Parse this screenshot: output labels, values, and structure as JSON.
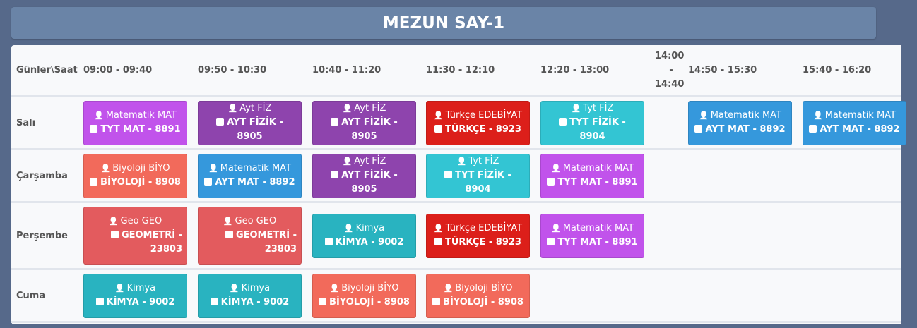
{
  "title": "MEZUN SAY-1",
  "corner_header": "Günler\\Saat",
  "slots": [
    "09:00 - 09:40",
    "09:50 - 10:30",
    "10:40 - 11:20",
    "11:30 - 12:10",
    "12:20 - 13:00",
    "14:00 - 14:40",
    "14:50 - 15:30",
    "15:40 - 16:20"
  ],
  "colors": {
    "mat_tyt": "#c153eb",
    "fiz_ayt": "#8e44ad",
    "turkce": "#dc1f1a",
    "fiz_tyt": "#33c5d3",
    "mat_ayt": "#3598dc",
    "biyo": "#f26a5b",
    "geo": "#e35b5e",
    "kimya": "#29b3c0"
  },
  "icons": {
    "teacher": "user-tie-icon",
    "lesson": "edit-icon"
  },
  "days": [
    {
      "name": "Salı",
      "lessons": [
        {
          "slot": 0,
          "teacher": "Matematik MAT",
          "course": "TYT MAT - 8891",
          "color": "mat_tyt"
        },
        {
          "slot": 1,
          "teacher": "Ayt FİZ",
          "course": "AYT FİZİK - 8905",
          "color": "fiz_ayt"
        },
        {
          "slot": 2,
          "teacher": "Ayt FİZ",
          "course": "AYT FİZİK - 8905",
          "color": "fiz_ayt"
        },
        {
          "slot": 3,
          "teacher": "Türkçe EDEBİYAT",
          "course": "TÜRKÇE - 8923",
          "color": "turkce"
        },
        {
          "slot": 4,
          "teacher": "Tyt FİZ",
          "course": "TYT FİZİK - 8904",
          "color": "fiz_tyt"
        },
        {
          "slot": 6,
          "teacher": "Matematik MAT",
          "course": "AYT MAT - 8892",
          "color": "mat_ayt"
        },
        {
          "slot": 7,
          "teacher": "Matematik MAT",
          "course": "AYT MAT - 8892",
          "color": "mat_ayt"
        }
      ]
    },
    {
      "name": "Çarşamba",
      "lessons": [
        {
          "slot": 0,
          "teacher": "Biyoloji BİYO",
          "course": "BİYOLOJİ - 8908",
          "color": "biyo"
        },
        {
          "slot": 1,
          "teacher": "Matematik MAT",
          "course": "AYT MAT - 8892",
          "color": "mat_ayt"
        },
        {
          "slot": 2,
          "teacher": "Ayt FİZ",
          "course": "AYT FİZİK - 8905",
          "color": "fiz_ayt"
        },
        {
          "slot": 3,
          "teacher": "Tyt FİZ",
          "course": "TYT FİZİK - 8904",
          "color": "fiz_tyt"
        },
        {
          "slot": 4,
          "teacher": "Matematik MAT",
          "course": "TYT MAT - 8891",
          "color": "mat_tyt"
        }
      ]
    },
    {
      "name": "Perşembe",
      "lessons": [
        {
          "slot": 0,
          "teacher": "Geo GEO",
          "course": "GEOMETRİ - 23803",
          "color": "geo"
        },
        {
          "slot": 1,
          "teacher": "Geo GEO",
          "course": "GEOMETRİ - 23803",
          "color": "geo"
        },
        {
          "slot": 2,
          "teacher": "Kimya",
          "course": "KİMYA - 9002",
          "color": "kimya"
        },
        {
          "slot": 3,
          "teacher": "Türkçe EDEBİYAT",
          "course": "TÜRKÇE - 8923",
          "color": "turkce"
        },
        {
          "slot": 4,
          "teacher": "Matematik MAT",
          "course": "TYT MAT - 8891",
          "color": "mat_tyt"
        }
      ]
    },
    {
      "name": "Cuma",
      "lessons": [
        {
          "slot": 0,
          "teacher": "Kimya",
          "course": "KİMYA - 9002",
          "color": "kimya"
        },
        {
          "slot": 1,
          "teacher": "Kimya",
          "course": "KİMYA - 9002",
          "color": "kimya"
        },
        {
          "slot": 2,
          "teacher": "Biyoloji BİYO",
          "course": "BİYOLOJİ - 8908",
          "color": "biyo"
        },
        {
          "slot": 3,
          "teacher": "Biyoloji BİYO",
          "course": "BİYOLOJİ - 8908",
          "color": "biyo"
        }
      ]
    }
  ]
}
